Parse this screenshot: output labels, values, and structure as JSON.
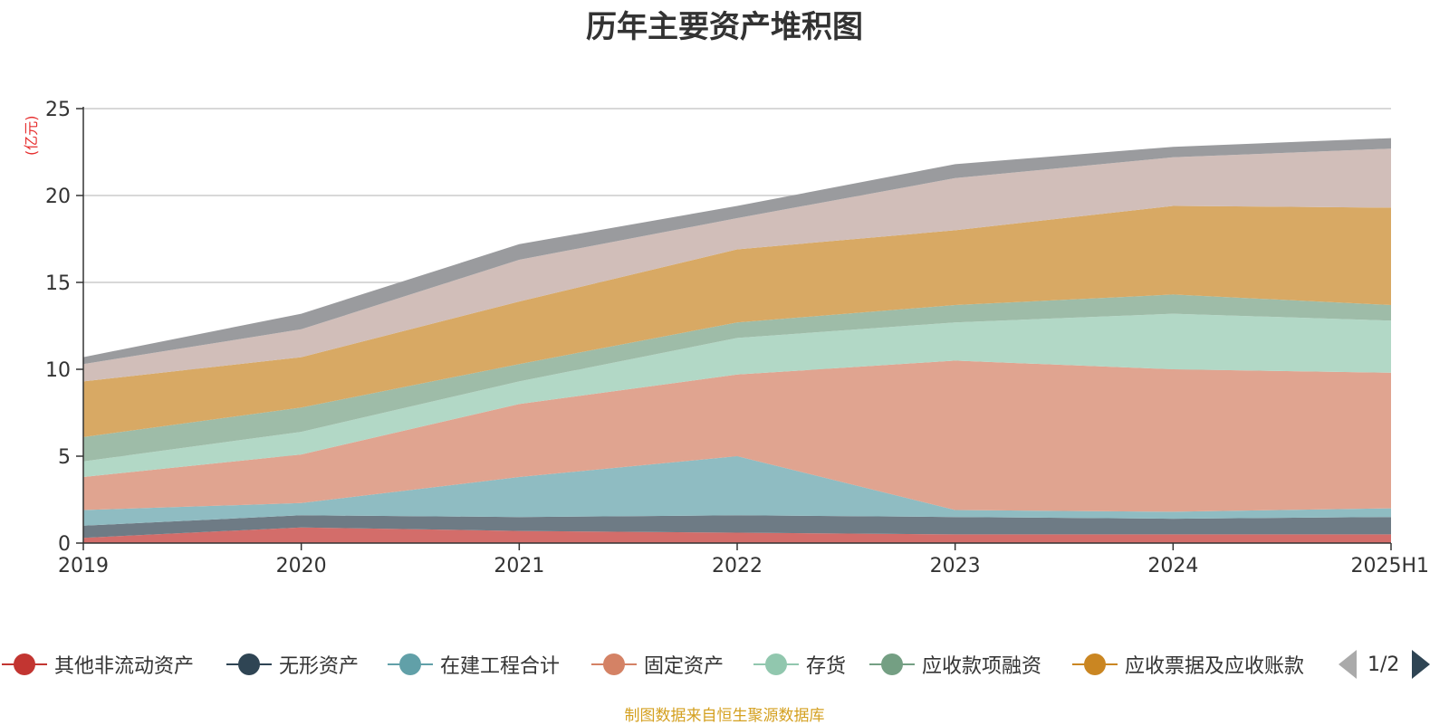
{
  "title": "历年主要资产堆积图",
  "unit": "(亿元)",
  "footer": "制图数据来自恒生聚源数据库",
  "pager": {
    "text": "1/2"
  },
  "chart_data": {
    "type": "area",
    "stacked": true,
    "x": [
      "2019",
      "2020",
      "2021",
      "2022",
      "2023",
      "2024",
      "2025H1"
    ],
    "ylim": [
      0,
      25
    ],
    "yticks": [
      0,
      5,
      10,
      15,
      20,
      25
    ],
    "grid": true,
    "legend_position": "bottom",
    "series": [
      {
        "name": "其他非流动资产",
        "color": "#c23531",
        "fill": "#d36d6a",
        "values": [
          0.3,
          0.9,
          0.7,
          0.6,
          0.5,
          0.5,
          0.5
        ]
      },
      {
        "name": "无形资产",
        "color": "#2f4554",
        "fill": "#6e7b85",
        "values": [
          0.7,
          0.7,
          0.8,
          1.0,
          1.0,
          0.9,
          1.0
        ]
      },
      {
        "name": "在建工程合计",
        "color": "#61a0a8",
        "fill": "#8fbcc2",
        "values": [
          0.9,
          0.7,
          2.3,
          3.4,
          0.4,
          0.4,
          0.5
        ]
      },
      {
        "name": "固定资产",
        "color": "#d48265",
        "fill": "#e0a490",
        "values": [
          1.9,
          2.8,
          4.2,
          4.7,
          8.6,
          8.2,
          7.8
        ]
      },
      {
        "name": "存货",
        "color": "#91c7ae",
        "fill": "#b2d8c6",
        "values": [
          0.9,
          1.3,
          1.3,
          2.1,
          2.2,
          3.2,
          3.0
        ]
      },
      {
        "name": "应收款项融资",
        "color": "#749f83",
        "fill": "#9ebca8",
        "values": [
          1.4,
          1.4,
          1.0,
          0.9,
          1.0,
          1.1,
          0.9
        ]
      },
      {
        "name": "应收票据及应收账款",
        "color": "#ca8622",
        "fill": "#d8a964",
        "values": [
          3.2,
          2.9,
          3.6,
          4.2,
          4.3,
          5.1,
          5.6
        ]
      },
      {
        "color": "#bda29a",
        "fill": "#d1beb9",
        "values": [
          1.0,
          1.6,
          2.4,
          1.8,
          3.0,
          2.8,
          3.4
        ]
      },
      {
        "color": "#6e7074",
        "fill": "#9a9b9e",
        "values": [
          0.4,
          0.9,
          0.9,
          0.7,
          0.8,
          0.6,
          0.6
        ]
      }
    ]
  }
}
